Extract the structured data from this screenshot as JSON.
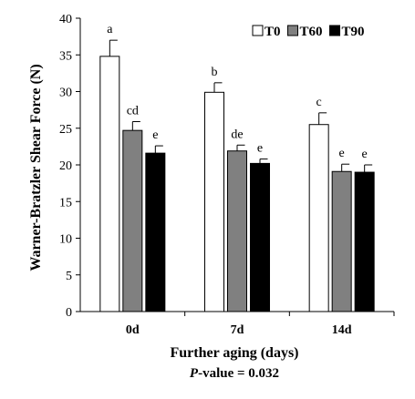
{
  "chart_data": {
    "type": "bar",
    "categories": [
      "0d",
      "7d",
      "14d"
    ],
    "series": [
      {
        "name": "T0",
        "color": "#ffffff",
        "values": [
          34.8,
          29.9,
          25.5
        ],
        "errors": [
          2.2,
          1.3,
          1.6
        ],
        "letters": [
          "a",
          "b",
          "c"
        ]
      },
      {
        "name": "T60",
        "color": "#808080",
        "values": [
          24.7,
          21.9,
          19.1
        ],
        "errors": [
          1.2,
          0.8,
          1.0
        ],
        "letters": [
          "cd",
          "de",
          "e"
        ]
      },
      {
        "name": "T90",
        "color": "#000000",
        "values": [
          21.6,
          20.2,
          19.0
        ],
        "errors": [
          1.0,
          0.6,
          1.0
        ],
        "letters": [
          "e",
          "e",
          "e"
        ]
      }
    ],
    "ylim": [
      0,
      40
    ],
    "yticks": [
      0,
      5,
      10,
      15,
      20,
      25,
      30,
      35,
      40
    ],
    "ylabel": "Warner-Bratzler Shear Force (N)",
    "xlabel": "Further aging (days)",
    "pvalue_prefix": "P",
    "pvalue_suffix": "-value = 0.032",
    "legend_position": "top-right",
    "grid": false
  }
}
